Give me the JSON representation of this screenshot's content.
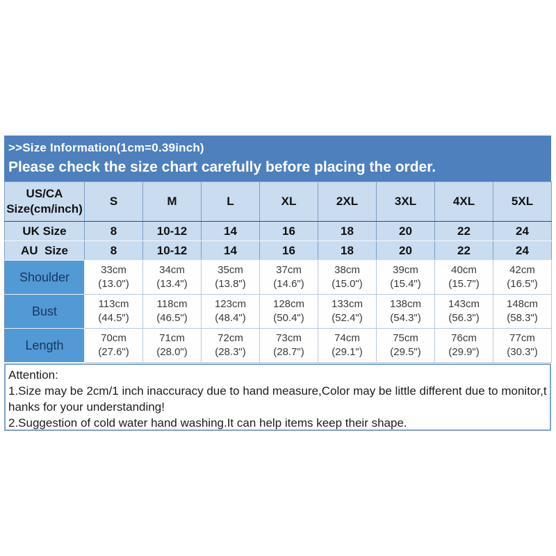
{
  "banner": {
    "title": ">>Size Information(1cm=0.39inch)",
    "subtitle": "Please check the size chart carefully before placing the order."
  },
  "table": {
    "header": {
      "label": "US/CA Size(cm/inch)",
      "sizes": [
        "S",
        "M",
        "L",
        "XL",
        "2XL",
        "3XL",
        "4XL",
        "5XL"
      ]
    },
    "size_rows": [
      {
        "label": "UK Size",
        "values": [
          "8",
          "10-12",
          "14",
          "16",
          "18",
          "20",
          "22",
          "24"
        ]
      },
      {
        "label": "AU  Size",
        "values": [
          "8",
          "10-12",
          "14",
          "16",
          "18",
          "20",
          "22",
          "24"
        ]
      }
    ],
    "measure_rows": [
      {
        "label": "Shoulder",
        "values": [
          {
            "cm": "33cm",
            "inch": "(13.0\")"
          },
          {
            "cm": "34cm",
            "inch": "(13.4\")"
          },
          {
            "cm": "35cm",
            "inch": "(13.8\")"
          },
          {
            "cm": "37cm",
            "inch": "(14.6\")"
          },
          {
            "cm": "38cm",
            "inch": "(15.0\")"
          },
          {
            "cm": "39cm",
            "inch": "(15.4\")"
          },
          {
            "cm": "40cm",
            "inch": "(15.7\")"
          },
          {
            "cm": "42cm",
            "inch": "(16.5\")"
          }
        ]
      },
      {
        "label": "Bust",
        "values": [
          {
            "cm": "113cm",
            "inch": "(44.5\")"
          },
          {
            "cm": "118cm",
            "inch": "(46.5\")"
          },
          {
            "cm": "123cm",
            "inch": "(48.4\")"
          },
          {
            "cm": "128cm",
            "inch": "(50.4\")"
          },
          {
            "cm": "133cm",
            "inch": "(52.4\")"
          },
          {
            "cm": "138cm",
            "inch": "(54.3\")"
          },
          {
            "cm": "143cm",
            "inch": "(56.3\")"
          },
          {
            "cm": "148cm",
            "inch": "(58.3\")"
          }
        ]
      },
      {
        "label": "Length",
        "values": [
          {
            "cm": "70cm",
            "inch": "(27.6\")"
          },
          {
            "cm": "71cm",
            "inch": "(28.0\")"
          },
          {
            "cm": "72cm",
            "inch": "(28.3\")"
          },
          {
            "cm": "73cm",
            "inch": "(28.7\")"
          },
          {
            "cm": "74cm",
            "inch": "(29.1\")"
          },
          {
            "cm": "75cm",
            "inch": "(29.5\")"
          },
          {
            "cm": "76cm",
            "inch": "(29.9\")"
          },
          {
            "cm": "77cm",
            "inch": "(30.3\")"
          }
        ]
      }
    ]
  },
  "attention": {
    "lines": [
      "Attention:",
      "1.Size may be 2cm/1 inch inaccuracy due to hand measure,Color may be little different due to monitor,t",
      "hanks for your understanding!",
      "2.Suggestion of cold water hand washing.It can help items keep their shape."
    ]
  },
  "colors": {
    "banner_bg": "#4e80bd",
    "light_row_bg": "#c9dcf0",
    "label_col_bg": "#529ad6",
    "banner_text": "#ffffff",
    "label_text": "#17365d"
  }
}
